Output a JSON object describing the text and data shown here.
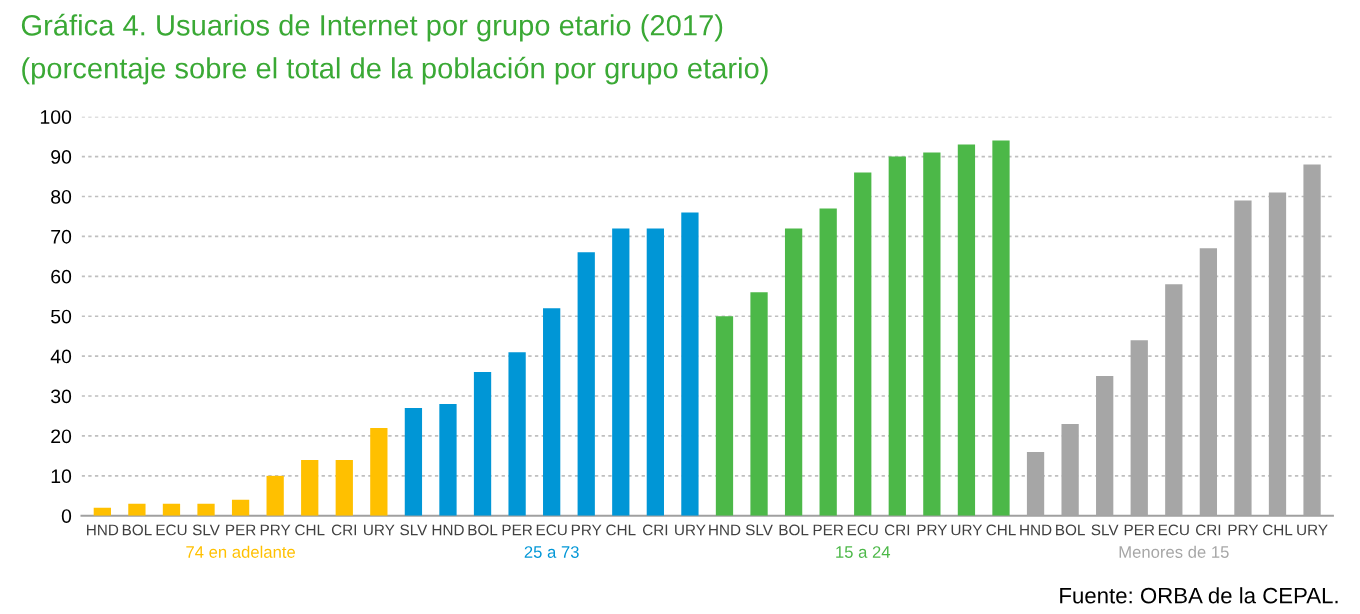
{
  "chart_data": {
    "type": "bar",
    "title": "Gráfica 4. Usuarios de Internet por grupo etario (2017)",
    "subtitle": "(porcentaje sobre el total de la población por grupo etario)",
    "categories": [
      "HND",
      "BOL",
      "ECU",
      "SLV",
      "PER",
      "PRY",
      "CHL",
      "CRI",
      "URY",
      "SLV",
      "HND",
      "BOL",
      "PER",
      "ECU",
      "PRY",
      "CHL",
      "CRI",
      "URY",
      "HND",
      "SLV",
      "BOL",
      "PER",
      "ECU",
      "CRI",
      "PRY",
      "URY",
      "CHL",
      "HND",
      "BOL",
      "SLV",
      "PER",
      "ECU",
      "CRI",
      "PRY",
      "CHL",
      "URY"
    ],
    "series": [
      {
        "name": "74 en adelante",
        "color": "#ffc000",
        "values": [
          2,
          3,
          3,
          3,
          4,
          10,
          14,
          14,
          22,
          null,
          null,
          null,
          null,
          null,
          null,
          null,
          null,
          null,
          null,
          null,
          null,
          null,
          null,
          null,
          null,
          null,
          null,
          null,
          null,
          null,
          null,
          null,
          null,
          null,
          null,
          null
        ]
      },
      {
        "name": "25 a 73",
        "color": "#0096d6",
        "values": [
          null,
          null,
          null,
          null,
          null,
          null,
          null,
          null,
          null,
          27,
          28,
          36,
          41,
          52,
          66,
          72,
          72,
          76,
          null,
          null,
          null,
          null,
          null,
          null,
          null,
          null,
          null,
          null,
          null,
          null,
          null,
          null,
          null,
          null,
          null,
          null
        ]
      },
      {
        "name": "15 a 24",
        "color": "#4cb848",
        "values": [
          null,
          null,
          null,
          null,
          null,
          null,
          null,
          null,
          null,
          null,
          null,
          null,
          null,
          null,
          null,
          null,
          null,
          null,
          50,
          56,
          72,
          77,
          86,
          90,
          91,
          93,
          94,
          null,
          null,
          null,
          null,
          null,
          null,
          null,
          null,
          null
        ]
      },
      {
        "name": "Menores de 15",
        "color": "#a6a6a6",
        "values": [
          null,
          null,
          null,
          null,
          null,
          null,
          null,
          null,
          null,
          null,
          null,
          null,
          null,
          null,
          null,
          null,
          null,
          null,
          null,
          null,
          null,
          null,
          null,
          null,
          null,
          null,
          null,
          16,
          23,
          35,
          44,
          58,
          67,
          79,
          81,
          88
        ]
      }
    ],
    "ylim": [
      0,
      100
    ],
    "yticks": [
      0,
      10,
      20,
      30,
      40,
      50,
      60,
      70,
      80,
      90,
      100
    ],
    "grid": "y",
    "annotations": [
      "Fuente: ORBA de la CEPAL."
    ]
  }
}
